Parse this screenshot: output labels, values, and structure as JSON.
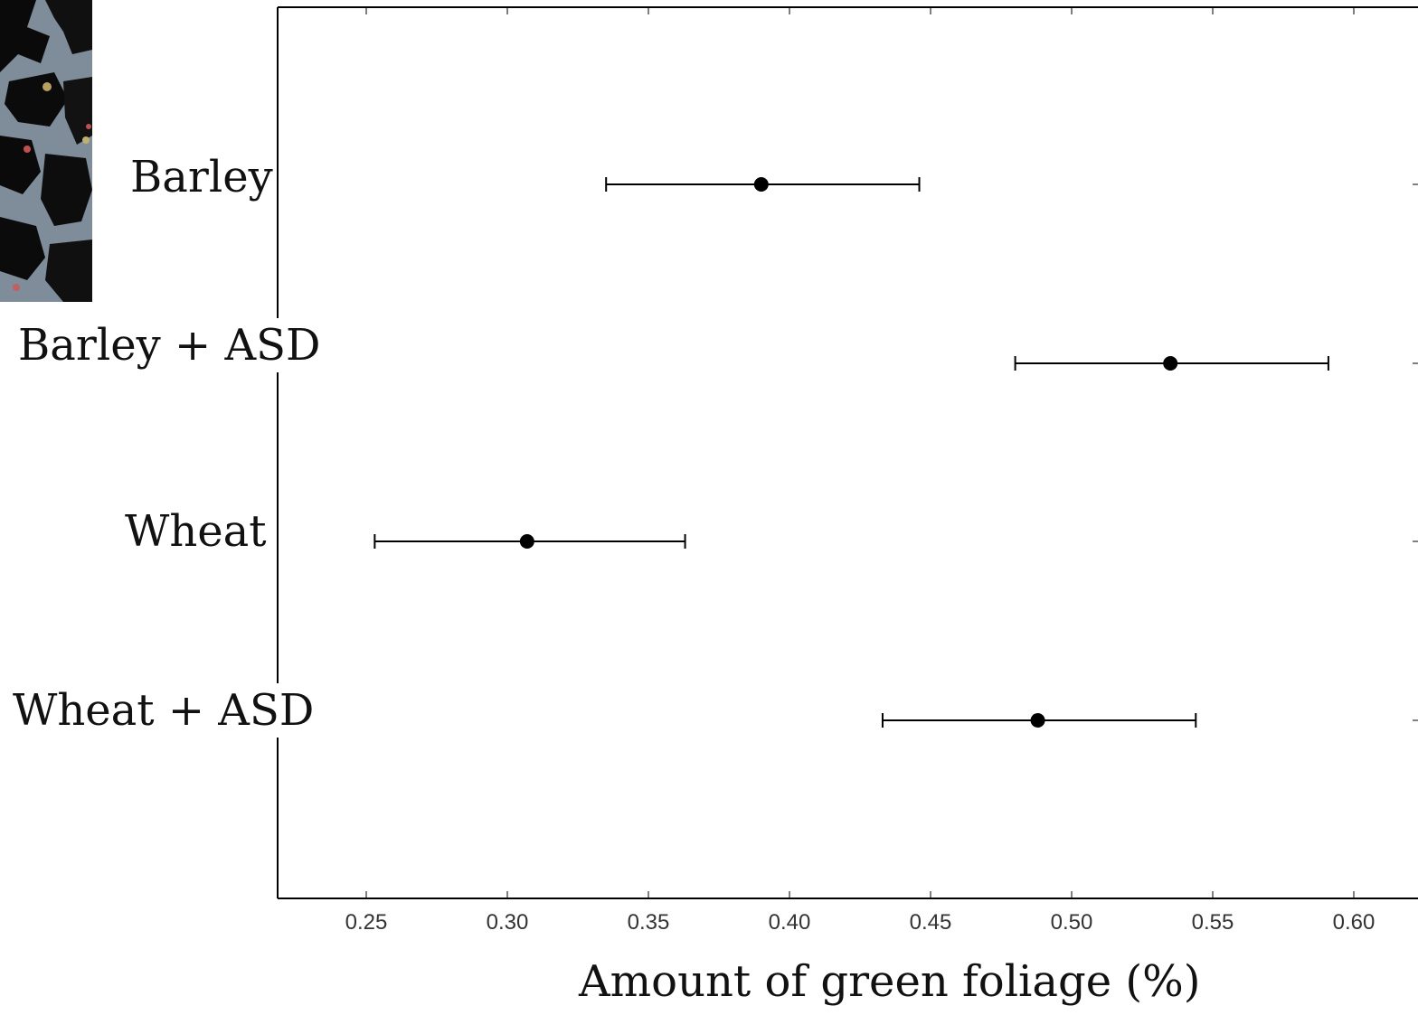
{
  "chart_data": {
    "type": "scatter",
    "subtype": "point-with-error-bars",
    "orientation": "horizontal",
    "title": "",
    "xlabel": "Amount of green foliage (%)",
    "ylabel": "",
    "xlim": [
      0.218,
      0.62
    ],
    "x_ticks": [
      0.25,
      0.3,
      0.35,
      0.4,
      0.45,
      0.5,
      0.55,
      0.6
    ],
    "x_tick_labels": [
      "0.25",
      "0.30",
      "0.35",
      "0.40",
      "0.45",
      "0.50",
      "0.55",
      "0.60"
    ],
    "categories": [
      "Barley",
      "Barley + ASD",
      "Wheat",
      "Wheat + ASD"
    ],
    "points": [
      {
        "category": "Barley",
        "mean": 0.39,
        "low": 0.335,
        "high": 0.446
      },
      {
        "category": "Barley + ASD",
        "mean": 0.535,
        "low": 0.48,
        "high": 0.591
      },
      {
        "category": "Wheat",
        "mean": 0.307,
        "low": 0.253,
        "high": 0.363
      },
      {
        "category": "Wheat + ASD",
        "mean": 0.488,
        "low": 0.433,
        "high": 0.544
      }
    ],
    "grid": false,
    "legend": "none",
    "colors": {
      "marker": "#000000",
      "axis": "#000000",
      "text": "#111111"
    }
  },
  "thumbnail": {
    "icon": "foliage-photo-icon"
  }
}
